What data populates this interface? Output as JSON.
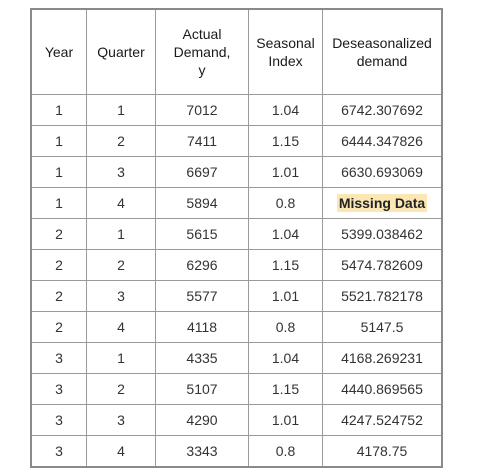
{
  "table": {
    "headers": {
      "year": "Year",
      "quarter": "Quarter",
      "demand_line1": "Actual",
      "demand_line2": "Demand,",
      "demand_line3": "y",
      "index_line1": "Seasonal",
      "index_line2": "Index",
      "deseas_line1": "Deseasonalized",
      "deseas_line2": "demand"
    },
    "rows": [
      {
        "year": "1",
        "quarter": "1",
        "demand": "7012",
        "index": "1.04",
        "deseasonalized": "6742.307692"
      },
      {
        "year": "1",
        "quarter": "2",
        "demand": "7411",
        "index": "1.15",
        "deseasonalized": "6444.347826"
      },
      {
        "year": "1",
        "quarter": "3",
        "demand": "6697",
        "index": "1.01",
        "deseasonalized": "6630.693069"
      },
      {
        "year": "1",
        "quarter": "4",
        "demand": "5894",
        "index": "0.8",
        "deseasonalized": "Missing Data"
      },
      {
        "year": "2",
        "quarter": "1",
        "demand": "5615",
        "index": "1.04",
        "deseasonalized": "5399.038462"
      },
      {
        "year": "2",
        "quarter": "2",
        "demand": "6296",
        "index": "1.15",
        "deseasonalized": "5474.782609"
      },
      {
        "year": "2",
        "quarter": "3",
        "demand": "5577",
        "index": "1.01",
        "deseasonalized": "5521.782178"
      },
      {
        "year": "2",
        "quarter": "4",
        "demand": "4118",
        "index": "0.8",
        "deseasonalized": "5147.5"
      },
      {
        "year": "3",
        "quarter": "1",
        "demand": "4335",
        "index": "1.04",
        "deseasonalized": "4168.269231"
      },
      {
        "year": "3",
        "quarter": "2",
        "demand": "5107",
        "index": "1.15",
        "deseasonalized": "4440.869565"
      },
      {
        "year": "3",
        "quarter": "3",
        "demand": "4290",
        "index": "1.01",
        "deseasonalized": "4247.524752"
      },
      {
        "year": "3",
        "quarter": "4",
        "demand": "3343",
        "index": "0.8",
        "deseasonalized": "4178.75"
      }
    ],
    "highlight_color": "#fbe7b4",
    "border_color": "#9a9a9a"
  }
}
